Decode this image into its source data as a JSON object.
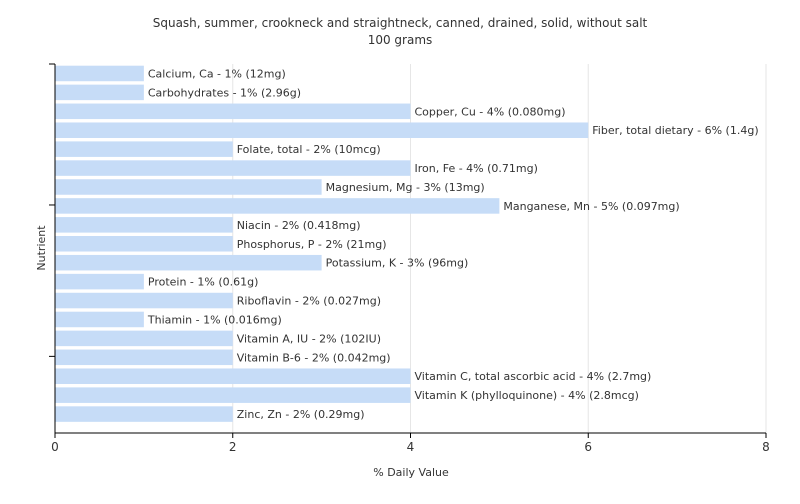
{
  "chart_data": {
    "type": "bar",
    "orientation": "horizontal",
    "title": "Squash, summer, crookneck and straightneck, canned, drained, solid, without salt",
    "subtitle": "100 grams",
    "xlabel": "% Daily Value",
    "ylabel": "Nutrient",
    "xlim": [
      0,
      8
    ],
    "xticks": [
      0,
      2,
      4,
      6,
      8
    ],
    "grid": true,
    "bar_color": "#c6dcf7",
    "categories": [
      "Calcium, Ca",
      "Carbohydrates",
      "Copper, Cu",
      "Fiber, total dietary",
      "Folate, total",
      "Iron, Fe",
      "Magnesium, Mg",
      "Manganese, Mn",
      "Niacin",
      "Phosphorus, P",
      "Potassium, K",
      "Protein",
      "Riboflavin",
      "Thiamin",
      "Vitamin A, IU",
      "Vitamin B-6",
      "Vitamin C, total ascorbic acid",
      "Vitamin K (phylloquinone)",
      "Zinc, Zn"
    ],
    "values": [
      1,
      1,
      4,
      6,
      2,
      4,
      3,
      5,
      2,
      2,
      3,
      1,
      2,
      1,
      2,
      2,
      4,
      4,
      2
    ],
    "labels": [
      "Calcium, Ca - 1% (12mg)",
      "Carbohydrates - 1% (2.96g)",
      "Copper, Cu - 4% (0.080mg)",
      "Fiber, total dietary - 6% (1.4g)",
      "Folate, total - 2% (10mcg)",
      "Iron, Fe - 4% (0.71mg)",
      "Magnesium, Mg - 3% (13mg)",
      "Manganese, Mn - 5% (0.097mg)",
      "Niacin - 2% (0.418mg)",
      "Phosphorus, P - 2% (21mg)",
      "Potassium, K - 3% (96mg)",
      "Protein - 1% (0.61g)",
      "Riboflavin - 2% (0.027mg)",
      "Thiamin - 1% (0.016mg)",
      "Vitamin A, IU - 2% (102IU)",
      "Vitamin B-6 - 2% (0.042mg)",
      "Vitamin C, total ascorbic acid - 4% (2.7mg)",
      "Vitamin K (phylloquinone) - 4% (2.8mcg)",
      "Zinc, Zn - 2% (0.29mg)"
    ]
  }
}
